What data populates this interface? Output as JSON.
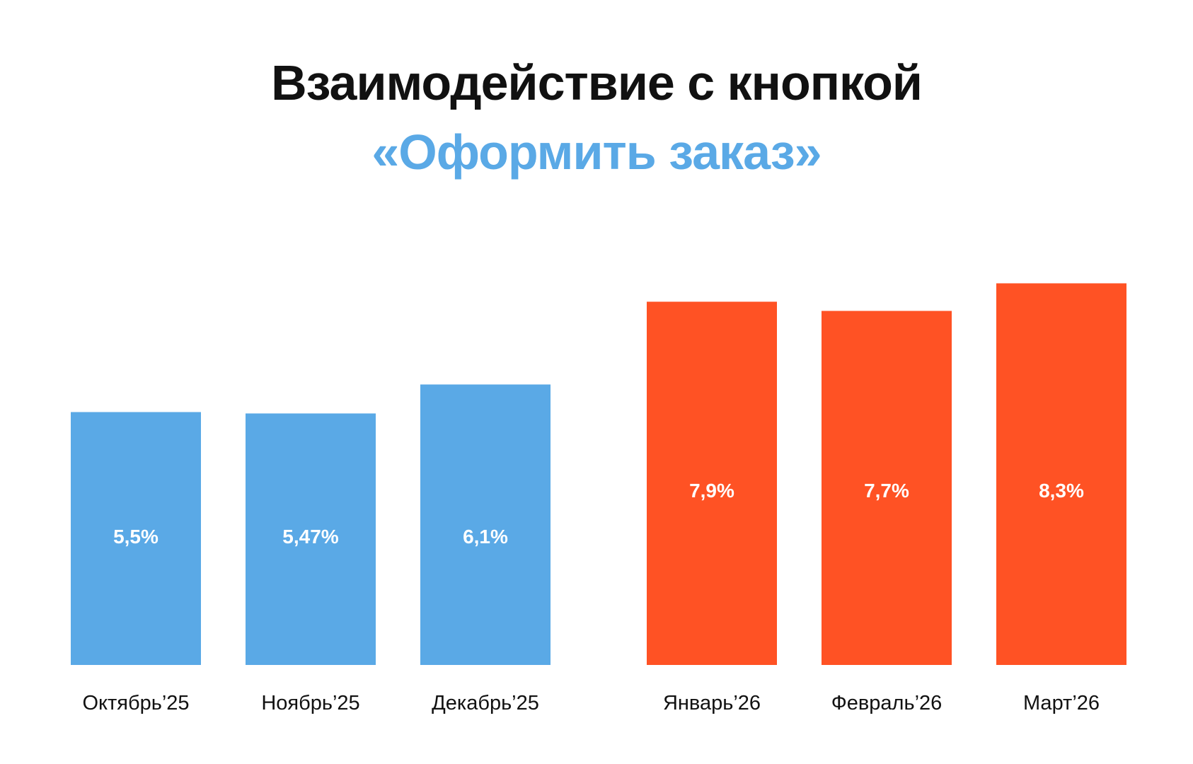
{
  "title": {
    "line1": "Взаимодействие с кнопкой",
    "line2": "«Оформить заказ»"
  },
  "colors": {
    "title": "#111111",
    "accent": "#5AA9E6",
    "highlight": "#FF5224"
  },
  "chart_data": {
    "type": "bar",
    "title": "Взаимодействие с кнопкой «Оформить заказ»",
    "xlabel": "",
    "ylabel": "",
    "ylim": [
      0,
      9
    ],
    "grid": false,
    "categories": [
      "Октябрь’25",
      "Ноябрь’25",
      "Декабрь’25",
      "Январь’26",
      "Февраль’26",
      "Март’26"
    ],
    "values": [
      5.5,
      5.47,
      6.1,
      7.9,
      7.7,
      8.3
    ],
    "value_labels": [
      "5,5%",
      "5,47%",
      "6,1%",
      "7,9%",
      "7,7%",
      "8,3%"
    ],
    "bar_colors": [
      "#5AA9E6",
      "#5AA9E6",
      "#5AA9E6",
      "#FF5224",
      "#FF5224",
      "#FF5224"
    ]
  }
}
